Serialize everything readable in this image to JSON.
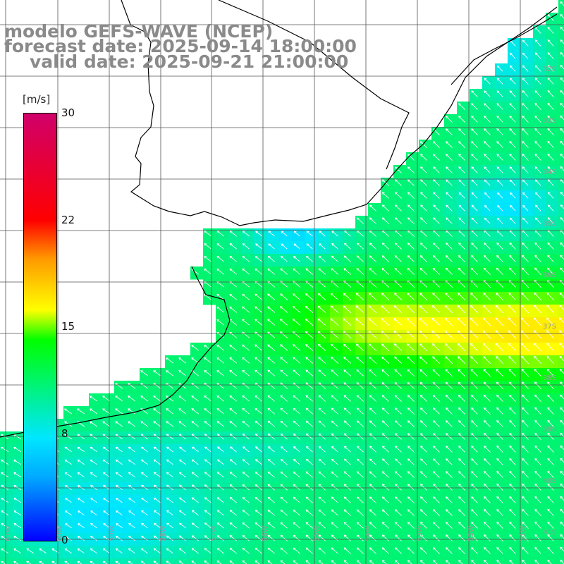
{
  "title": {
    "line1": "modelo GEFS-WAVE (NCEP)",
    "line2": "forecast date: 2025-09-14 18:00:00",
    "line3": "valid date: 2025-09-21 21:00:00"
  },
  "colorbar": {
    "unit": "[m/s]",
    "ticks": [
      "30",
      "22",
      "15",
      "8",
      "0"
    ],
    "range": [
      0,
      30
    ]
  },
  "latitude_labels": [
    "32S",
    "33S",
    "34S",
    "35S",
    "36S",
    "37S",
    "38S",
    "39S",
    "40S",
    "41S"
  ],
  "longitude_labels": [
    "61W",
    "60W",
    "59W",
    "58W",
    "57W",
    "56W",
    "55W",
    "54W",
    "53W",
    "52W",
    "51W"
  ],
  "colors": {
    "land": "#ffffff",
    "grid": "#555555",
    "coast": "#000000",
    "arrows": "#ffffff",
    "title_text": "#8a8a8a"
  }
}
